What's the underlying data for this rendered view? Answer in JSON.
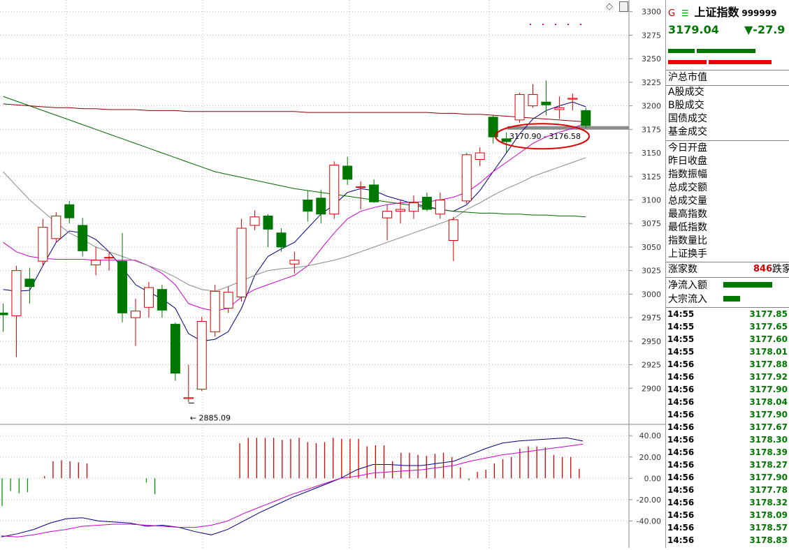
{
  "header": {
    "g_label": "G",
    "menu_icon": "hamburger-icon",
    "index_name": "上证指数",
    "index_code": "999999",
    "last_price": "3179.04",
    "change": "▼-27.9"
  },
  "side_panel": {
    "market_cap_label": "沪总市值",
    "turnover_labels": [
      "A股成交",
      "B股成交",
      "国债成交",
      "基金成交"
    ],
    "stat_labels": [
      "今日开盘",
      "昨日收盘",
      "指数振幅",
      "总成交额",
      "总成交量",
      "最高指数",
      "最低指数",
      "指数量比",
      "上证换手"
    ],
    "rise_fall": {
      "rise_label": "涨家数",
      "rise_count": "846",
      "fall_label": "跌家"
    },
    "flow": {
      "net_inflow_label": "净流入额",
      "block_inflow_label": "大宗流入",
      "net_inflow_bar": 0.7,
      "block_inflow_bar": 0.24
    },
    "ticks": [
      {
        "time": "14:55",
        "price": "3177.85"
      },
      {
        "time": "14:55",
        "price": "3177.65"
      },
      {
        "time": "14:55",
        "price": "3177.60"
      },
      {
        "time": "14:55",
        "price": "3178.01"
      },
      {
        "time": "14:56",
        "price": "3177.88"
      },
      {
        "time": "14:56",
        "price": "3177.92"
      },
      {
        "time": "14:56",
        "price": "3177.90"
      },
      {
        "time": "14:56",
        "price": "3178.04"
      },
      {
        "time": "14:56",
        "price": "3177.90"
      },
      {
        "time": "14:56",
        "price": "3177.67"
      },
      {
        "time": "14:56",
        "price": "3178.30"
      },
      {
        "time": "14:56",
        "price": "3178.39"
      },
      {
        "time": "14:56",
        "price": "3178.27"
      },
      {
        "time": "14:56",
        "price": "3177.90"
      },
      {
        "time": "14:56",
        "price": "3177.78"
      },
      {
        "time": "14:56",
        "price": "3178.32"
      },
      {
        "time": "14:56",
        "price": "3178.09"
      },
      {
        "time": "14:56",
        "price": "3178.57"
      },
      {
        "time": "14:56",
        "price": "3178.83"
      }
    ]
  },
  "chart_data": {
    "type": "candlestick",
    "price_axis": {
      "ticks": [
        "3300",
        "3275",
        "3250",
        "3225",
        "3200",
        "3175",
        "3150",
        "3125",
        "3100",
        "3075",
        "3050",
        "3025",
        "3000",
        "2975",
        "2950",
        "2925",
        "2900"
      ],
      "ylim": [
        2875,
        3305
      ]
    },
    "annotations": {
      "low_label": "2885.09",
      "gap_label": "3170.90 - 3176.58",
      "gap_low": 3170.9,
      "gap_high": 3176.58
    },
    "candles": [
      {
        "o": 2980,
        "c": 2978,
        "h": 2990,
        "l": 2960
      },
      {
        "o": 2977,
        "c": 3025,
        "h": 3030,
        "l": 2933
      },
      {
        "o": 3016,
        "c": 3008,
        "h": 3028,
        "l": 2990
      },
      {
        "o": 3035,
        "c": 3071,
        "h": 3080,
        "l": 3030
      },
      {
        "o": 3059,
        "c": 3083,
        "h": 3087,
        "l": 3055
      },
      {
        "o": 3095,
        "c": 3081,
        "h": 3099,
        "l": 3075
      },
      {
        "o": 3073,
        "c": 3046,
        "h": 3081,
        "l": 3040
      },
      {
        "o": 3031,
        "c": 3036,
        "h": 3050,
        "l": 3020
      },
      {
        "o": 3039,
        "c": 3039,
        "h": 3045,
        "l": 3025
      },
      {
        "o": 3035,
        "c": 2980,
        "h": 3065,
        "l": 2970
      },
      {
        "o": 2975,
        "c": 2982,
        "h": 2995,
        "l": 2945
      },
      {
        "o": 2986,
        "c": 3007,
        "h": 3013,
        "l": 2975
      },
      {
        "o": 3005,
        "c": 2983,
        "h": 3010,
        "l": 2975
      },
      {
        "o": 2968,
        "c": 2916,
        "h": 2970,
        "l": 2908
      },
      {
        "o": 2889,
        "c": 2890,
        "h": 2925,
        "l": 2885.09
      },
      {
        "o": 2899,
        "c": 2971,
        "h": 2976,
        "l": 2897
      },
      {
        "o": 2960,
        "c": 3003,
        "h": 3010,
        "l": 2955
      },
      {
        "o": 2985,
        "c": 3002,
        "h": 3008,
        "l": 2980
      },
      {
        "o": 2997,
        "c": 3070,
        "h": 3080,
        "l": 2992
      },
      {
        "o": 3073,
        "c": 3082,
        "h": 3089,
        "l": 3068
      },
      {
        "o": 3083,
        "c": 3069,
        "h": 3085,
        "l": 3050
      },
      {
        "o": 3065,
        "c": 3050,
        "h": 3070,
        "l": 3045
      },
      {
        "o": 3032,
        "c": 3036,
        "h": 3045,
        "l": 3022
      },
      {
        "o": 3100,
        "c": 3088,
        "h": 3110,
        "l": 3077
      },
      {
        "o": 3102,
        "c": 3085,
        "h": 3111,
        "l": 3075
      },
      {
        "o": 3085,
        "c": 3137,
        "h": 3141,
        "l": 3080
      },
      {
        "o": 3136,
        "c": 3122,
        "h": 3146,
        "l": 3116
      },
      {
        "o": 3114,
        "c": 3114,
        "h": 3120,
        "l": 3090
      },
      {
        "o": 3116,
        "c": 3098,
        "h": 3122,
        "l": 3097
      },
      {
        "o": 3081,
        "c": 3088,
        "h": 3095,
        "l": 3057
      },
      {
        "o": 3088,
        "c": 3090,
        "h": 3100,
        "l": 3075
      },
      {
        "o": 3088,
        "c": 3097,
        "h": 3105,
        "l": 3080
      },
      {
        "o": 3103,
        "c": 3090,
        "h": 3108,
        "l": 3088
      },
      {
        "o": 3085,
        "c": 3100,
        "h": 3108,
        "l": 3080
      },
      {
        "o": 3057,
        "c": 3079,
        "h": 3082,
        "l": 3035
      },
      {
        "o": 3099,
        "c": 3148,
        "h": 3150,
        "l": 3096
      },
      {
        "o": 3143,
        "c": 3150,
        "h": 3156,
        "l": 3136
      },
      {
        "o": 3188,
        "c": 3167,
        "h": 3190,
        "l": 3160
      },
      {
        "o": 3165,
        "c": 3162,
        "h": 3172,
        "l": 3150
      },
      {
        "o": 3185,
        "c": 3212,
        "h": 3214,
        "l": 3182
      },
      {
        "o": 3200,
        "c": 3212,
        "h": 3223,
        "l": 3198
      },
      {
        "o": 3204,
        "c": 3201,
        "h": 3227,
        "l": 3190
      },
      {
        "o": 3196,
        "c": 3198,
        "h": 3210,
        "l": 3186
      },
      {
        "o": 3207,
        "c": 3208,
        "h": 3213,
        "l": 3195
      },
      {
        "o": 3195,
        "c": 3179.04,
        "h": 3198,
        "l": 3176.58
      }
    ],
    "ma_lines": [
      {
        "color": "#000080",
        "values": [
          3005,
          3003,
          3004,
          3030,
          3055,
          3067,
          3065,
          3058,
          3045,
          3028,
          3010,
          3002,
          2995,
          2985,
          2958,
          2950,
          2952,
          2960,
          2985,
          3020,
          3040,
          3048,
          3055,
          3070,
          3085,
          3095,
          3108,
          3112,
          3110,
          3104,
          3100,
          3096,
          3093,
          3090,
          3088,
          3095,
          3110,
          3130,
          3150,
          3170,
          3186,
          3195,
          3200,
          3204,
          3199
        ]
      },
      {
        "color": "#cc00cc",
        "values": [
          3055,
          3045,
          3040,
          3038,
          3037,
          3037,
          3037,
          3036,
          3036,
          3036,
          3036,
          3030,
          3022,
          3010,
          2990,
          2985,
          2982,
          2985,
          2997,
          3005,
          3010,
          3015,
          3020,
          3030,
          3048,
          3065,
          3080,
          3088,
          3092,
          3095,
          3097,
          3098,
          3098,
          3100,
          3103,
          3108,
          3118,
          3130,
          3140,
          3150,
          3160,
          3167,
          3172,
          3176,
          3182
        ]
      },
      {
        "color": "#888888",
        "values": [
          3130,
          3115,
          3100,
          3088,
          3076,
          3065,
          3058,
          3050,
          3045,
          3040,
          3035,
          3030,
          3025,
          3018,
          3010,
          3005,
          3003,
          3008,
          3014,
          3020,
          3025,
          3027,
          3028,
          3030,
          3033,
          3036,
          3040,
          3045,
          3050,
          3055,
          3060,
          3065,
          3070,
          3075,
          3080,
          3090,
          3097,
          3105,
          3112,
          3118,
          3125,
          3130,
          3135,
          3140,
          3145
        ]
      },
      {
        "color": "#006600",
        "values": [
          3210,
          3205,
          3200,
          3195,
          3190,
          3185,
          3180,
          3175,
          3170,
          3165,
          3160,
          3155,
          3150,
          3145,
          3140,
          3135,
          3130,
          3127,
          3124,
          3121,
          3118,
          3115,
          3112,
          3110,
          3108,
          3106,
          3104,
          3102,
          3100,
          3098,
          3096,
          3094,
          3092,
          3090,
          3088,
          3087,
          3086,
          3086,
          3085,
          3085,
          3084,
          3084,
          3083,
          3083,
          3082
        ]
      },
      {
        "color": "#880000",
        "values": [
          3202,
          3201,
          3200,
          3199,
          3198,
          3198,
          3197,
          3197,
          3196,
          3196,
          3196,
          3195,
          3195,
          3195,
          3194,
          3194,
          3194,
          3194,
          3194,
          3194,
          3194,
          3194,
          3194,
          3193,
          3193,
          3193,
          3193,
          3193,
          3193,
          3193,
          3193,
          3193,
          3193,
          3192,
          3192,
          3191,
          3191,
          3190,
          3189,
          3188,
          3187,
          3186,
          3185,
          3184,
          3183
        ]
      }
    ],
    "indicator": {
      "axis_ticks": [
        "40.00",
        "20.00",
        "0.00",
        "-20.00",
        "-40.00"
      ],
      "ylim": [
        -62,
        48
      ],
      "bars": [
        -26,
        -12,
        -14,
        -13,
        0,
        2,
        16,
        17,
        16,
        15,
        14,
        0,
        0,
        0,
        0,
        0,
        0,
        -4,
        -15,
        0,
        0,
        0,
        0,
        0,
        0,
        0,
        0,
        0,
        33,
        38,
        38,
        38,
        38,
        36,
        37,
        38,
        34,
        33,
        34,
        38,
        37,
        37,
        37,
        30,
        31,
        31,
        16,
        24,
        24,
        22,
        21,
        23,
        24,
        20,
        10,
        -2,
        6,
        8,
        14,
        18,
        20,
        28,
        30,
        30,
        29,
        22,
        20,
        20,
        9
      ],
      "line1": {
        "color": "#000080",
        "values": [
          -55,
          -52,
          -48,
          -42,
          -38,
          -37,
          -40,
          -41,
          -42,
          -45,
          -44,
          -46,
          -50,
          -53,
          -48,
          -40,
          -32,
          -25,
          -18,
          -12,
          -6,
          0,
          8,
          13,
          13,
          12,
          12,
          14,
          16,
          22,
          28,
          33,
          35,
          36,
          37,
          38,
          35
        ]
      },
      "line2": {
        "color": "#cc00cc",
        "values": [
          -54,
          -55,
          -53,
          -50,
          -48,
          -45,
          -44,
          -43,
          -43,
          -44,
          -45,
          -46,
          -46,
          -44,
          -40,
          -33,
          -27,
          -21,
          -15,
          -10,
          -5,
          0,
          2,
          5,
          6,
          7,
          8,
          10,
          12,
          16,
          19,
          22,
          24,
          26,
          28,
          30,
          32
        ]
      }
    }
  }
}
